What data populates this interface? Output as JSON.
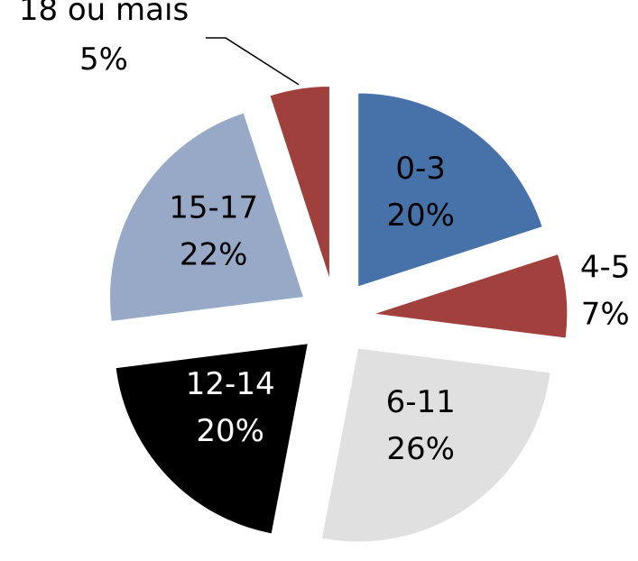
{
  "chart_data": {
    "type": "pie",
    "categories": [
      "0-3",
      "4-5",
      "6-11",
      "12-14",
      "15-17",
      "18 ou mais"
    ],
    "values": [
      20,
      7,
      26,
      20,
      22,
      5
    ],
    "value_labels": [
      "20%",
      "7%",
      "26%",
      "20%",
      "22%",
      "5%"
    ],
    "colors": [
      "#4672a9",
      "#a2403d",
      "#e0e0e0",
      "#000000",
      "#98a9c7",
      "#a0403d"
    ]
  }
}
